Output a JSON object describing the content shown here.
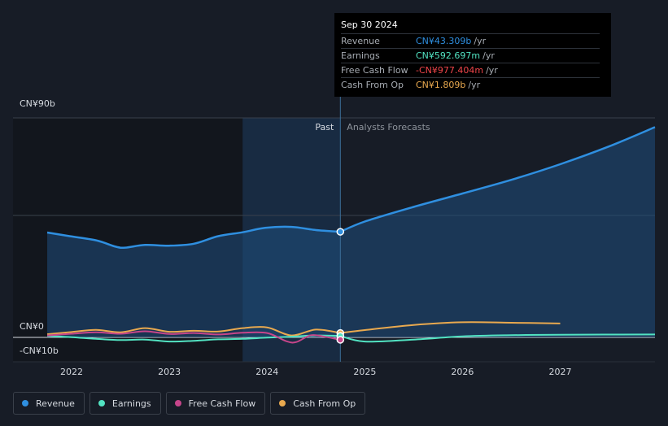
{
  "chart_data": {
    "type": "line",
    "y_axis": {
      "ylim": [
        -10,
        90
      ],
      "labels": [
        "CN¥90b",
        "CN¥0",
        "-CN¥10b"
      ],
      "label_values": [
        90,
        0,
        -10
      ],
      "gridlines": [
        90,
        50,
        0
      ]
    },
    "x_axis": {
      "xlim": [
        2021.4,
        2027.97
      ],
      "ticks": [
        "2022",
        "2023",
        "2024",
        "2025",
        "2026",
        "2027"
      ],
      "tick_values": [
        2022,
        2023,
        2024,
        2025,
        2026,
        2027
      ]
    },
    "past_label": "Past",
    "forecast_label": "Analysts Forecasts",
    "past_end_x": 2024.75,
    "highlight_start_x": 2023.75,
    "series": [
      {
        "name": "Revenue",
        "color": "#2f8fe0",
        "fill": true,
        "points": [
          [
            2021.75,
            43
          ],
          [
            2021.98,
            41.5
          ],
          [
            2022.25,
            39.8
          ],
          [
            2022.45,
            37.2
          ],
          [
            2022.55,
            36.8
          ],
          [
            2022.75,
            37.9
          ],
          [
            2023.0,
            37.6
          ],
          [
            2023.25,
            38.4
          ],
          [
            2023.5,
            41.5
          ],
          [
            2023.75,
            43.1
          ],
          [
            2023.98,
            44.9
          ],
          [
            2024.25,
            45.3
          ],
          [
            2024.5,
            44.0
          ],
          [
            2024.75,
            43.309
          ]
        ],
        "forecast": [
          [
            2024.75,
            43.309
          ],
          [
            2025.0,
            47.5
          ],
          [
            2025.5,
            53.5
          ],
          [
            2026.0,
            59.0
          ],
          [
            2026.5,
            64.6
          ],
          [
            2027.0,
            71.0
          ],
          [
            2027.5,
            78.3
          ],
          [
            2027.97,
            86.2
          ]
        ]
      },
      {
        "name": "Earnings",
        "color": "#52e3c2",
        "fill": false,
        "points": [
          [
            2021.75,
            0.6
          ],
          [
            2022.0,
            0.1
          ],
          [
            2022.25,
            -0.6
          ],
          [
            2022.5,
            -1.1
          ],
          [
            2022.75,
            -0.9
          ],
          [
            2023.0,
            -1.7
          ],
          [
            2023.25,
            -1.4
          ],
          [
            2023.5,
            -0.8
          ],
          [
            2023.75,
            -0.6
          ],
          [
            2024.0,
            -0.1
          ],
          [
            2024.25,
            0.3
          ],
          [
            2024.5,
            0.8
          ],
          [
            2024.75,
            0.59
          ]
        ],
        "forecast": [
          [
            2024.75,
            0.59
          ],
          [
            2025.0,
            -1.7
          ],
          [
            2025.5,
            -0.9
          ],
          [
            2026.0,
            0.4
          ],
          [
            2026.5,
            0.9
          ],
          [
            2027.0,
            1.1
          ],
          [
            2027.97,
            1.2
          ]
        ]
      },
      {
        "name": "Free Cash Flow",
        "color": "#c6458a",
        "fill": false,
        "points": [
          [
            2021.75,
            0.8
          ],
          [
            2022.0,
            1.5
          ],
          [
            2022.25,
            2.1
          ],
          [
            2022.5,
            1.5
          ],
          [
            2022.75,
            2.5
          ],
          [
            2023.0,
            1.4
          ],
          [
            2023.25,
            1.8
          ],
          [
            2023.5,
            1.2
          ],
          [
            2023.75,
            1.9
          ],
          [
            2024.0,
            1.8
          ],
          [
            2024.2,
            -1.6
          ],
          [
            2024.3,
            -1.9
          ],
          [
            2024.45,
            0.9
          ],
          [
            2024.6,
            0.2
          ],
          [
            2024.75,
            -0.98
          ]
        ],
        "forecast": []
      },
      {
        "name": "Cash From Op",
        "color": "#e9a94f",
        "fill": false,
        "points": [
          [
            2021.75,
            1.3
          ],
          [
            2022.0,
            2.2
          ],
          [
            2022.25,
            3.1
          ],
          [
            2022.5,
            2.1
          ],
          [
            2022.75,
            3.8
          ],
          [
            2023.0,
            2.3
          ],
          [
            2023.25,
            2.7
          ],
          [
            2023.5,
            2.4
          ],
          [
            2023.75,
            3.8
          ],
          [
            2024.0,
            4.1
          ],
          [
            2024.25,
            0.8
          ],
          [
            2024.5,
            3.2
          ],
          [
            2024.75,
            1.81
          ]
        ],
        "forecast": [
          [
            2024.75,
            1.81
          ],
          [
            2025.0,
            3.0
          ],
          [
            2025.5,
            5.1
          ],
          [
            2026.0,
            6.2
          ],
          [
            2026.5,
            6.0
          ],
          [
            2027.0,
            5.7
          ]
        ]
      }
    ]
  },
  "tooltip": {
    "date": "Sep 30 2024",
    "rows": [
      {
        "label": "Revenue",
        "value": "CN¥43.309b",
        "unit": "/yr",
        "color": "#2f8fe0"
      },
      {
        "label": "Earnings",
        "value": "CN¥592.697m",
        "unit": "/yr",
        "color": "#52e3c2"
      },
      {
        "label": "Free Cash Flow",
        "value": "-CN¥977.404m",
        "unit": "/yr",
        "color": "#f0454a"
      },
      {
        "label": "Cash From Op",
        "value": "CN¥1.809b",
        "unit": "/yr",
        "color": "#e9a94f"
      }
    ]
  },
  "legend": [
    {
      "label": "Revenue",
      "color": "#2f8fe0"
    },
    {
      "label": "Earnings",
      "color": "#52e3c2"
    },
    {
      "label": "Free Cash Flow",
      "color": "#c6458a"
    },
    {
      "label": "Cash From Op",
      "color": "#e9a94f"
    }
  ]
}
